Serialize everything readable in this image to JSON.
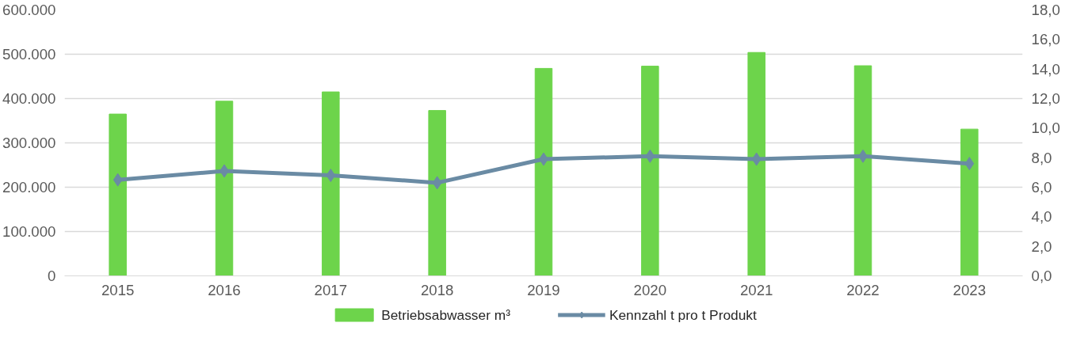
{
  "chart_data": {
    "type": "bar",
    "categories": [
      "2015",
      "2016",
      "2017",
      "2018",
      "2019",
      "2020",
      "2021",
      "2022",
      "2023"
    ],
    "series": [
      {
        "name": "Betriebsabwasser m³",
        "color": "#6dd44b",
        "values": [
          365000,
          394000,
          415000,
          373000,
          468000,
          473000,
          504000,
          474000,
          331000
        ]
      },
      {
        "name": "Kennzahl t pro t Produkt",
        "type": "line",
        "axis": "y2",
        "color": "#6a8ba4",
        "values": [
          6.5,
          7.1,
          6.8,
          6.3,
          7.9,
          8.1,
          7.9,
          8.1,
          7.6
        ]
      }
    ],
    "ylim": [
      0,
      600000
    ],
    "yticks": [
      {
        "value": 0,
        "label": "0"
      },
      {
        "value": 100000,
        "label": "100.000"
      },
      {
        "value": 200000,
        "label": "200.000"
      },
      {
        "value": 300000,
        "label": "300.000"
      },
      {
        "value": 400000,
        "label": "400.000"
      },
      {
        "value": 500000,
        "label": "500.000"
      },
      {
        "value": 600000,
        "label": "600.000"
      }
    ],
    "y2lim": [
      0,
      18
    ],
    "y2ticks": [
      {
        "value": 0,
        "label": "0,0"
      },
      {
        "value": 2,
        "label": "2,0"
      },
      {
        "value": 4,
        "label": "4,0"
      },
      {
        "value": 6,
        "label": "6,0"
      },
      {
        "value": 8,
        "label": "8,0"
      },
      {
        "value": 10,
        "label": "10,0"
      },
      {
        "value": 12,
        "label": "12,0"
      },
      {
        "value": 14,
        "label": "14,0"
      },
      {
        "value": 16,
        "label": "16,0"
      },
      {
        "value": 18,
        "label": "18,0"
      }
    ],
    "grid": "y",
    "legend": "bottom",
    "marker": "diamond",
    "line_style": "solid"
  }
}
